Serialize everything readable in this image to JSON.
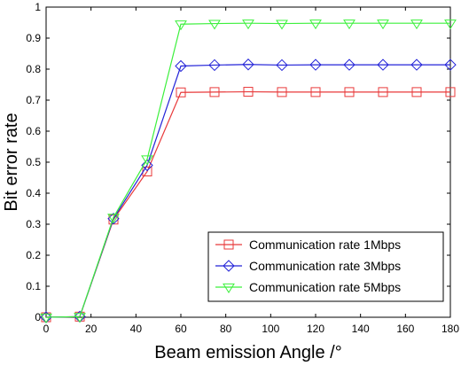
{
  "chart_data": {
    "type": "line",
    "title": "",
    "xlabel": "Beam emission Angle /°",
    "ylabel": "Bit error rate",
    "xlim": [
      0,
      180
    ],
    "ylim": [
      0,
      1
    ],
    "grid": false,
    "legend_position": "bottom-right",
    "x_ticks": [
      0,
      20,
      40,
      60,
      80,
      100,
      120,
      140,
      160,
      180
    ],
    "y_ticks": [
      0,
      0.1,
      0.2,
      0.3,
      0.4,
      0.5,
      0.6,
      0.7,
      0.8,
      0.9,
      1
    ],
    "x_tick_labels": [
      "0",
      "20",
      "40",
      "60",
      "80",
      "100",
      "120",
      "140",
      "160",
      "180"
    ],
    "y_tick_labels": [
      "0",
      "0.1",
      "0.2",
      "0.3",
      "0.4",
      "0.5",
      "0.6",
      "0.7",
      "0.8",
      "0.9",
      "1"
    ],
    "x": [
      0,
      15,
      30,
      45,
      60,
      75,
      90,
      105,
      120,
      135,
      150,
      165,
      180
    ],
    "series": [
      {
        "name": "Communication rate 1Mbps",
        "color": "#e8393a",
        "marker": "square",
        "values": [
          0,
          0.002,
          0.315,
          0.47,
          0.725,
          0.726,
          0.727,
          0.726,
          0.726,
          0.726,
          0.726,
          0.726,
          0.726
        ]
      },
      {
        "name": "Communication rate 3Mbps",
        "color": "#2323d8",
        "marker": "diamond",
        "values": [
          0,
          0.002,
          0.318,
          0.49,
          0.81,
          0.813,
          0.815,
          0.813,
          0.814,
          0.814,
          0.814,
          0.814,
          0.814
        ]
      },
      {
        "name": "Communication rate 5Mbps",
        "color": "#3cf03c",
        "marker": "triangle-down",
        "values": [
          0,
          0.002,
          0.322,
          0.51,
          0.945,
          0.947,
          0.948,
          0.947,
          0.948,
          0.948,
          0.948,
          0.948,
          0.948
        ]
      }
    ]
  }
}
